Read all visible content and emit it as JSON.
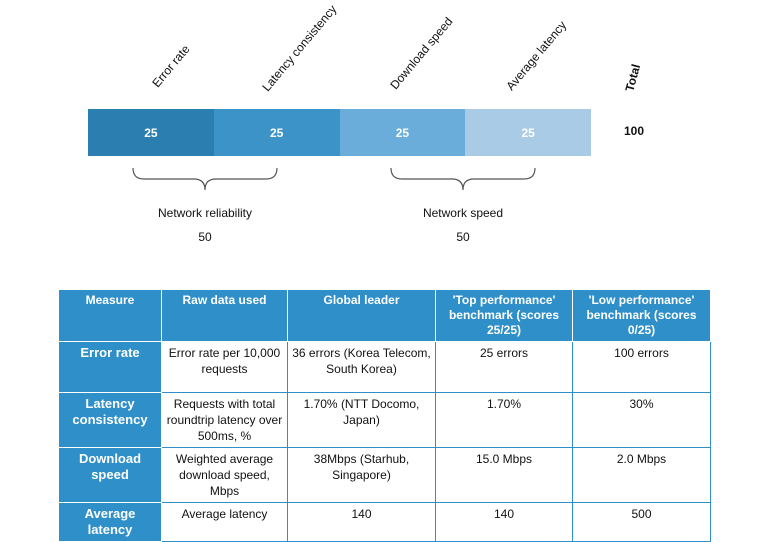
{
  "chart_data": {
    "type": "bar",
    "categories": [
      "Error rate",
      "Latency consistency",
      "Download speed",
      "Average latency"
    ],
    "values": [
      25,
      25,
      25,
      25
    ],
    "colors": [
      "#2a7fb0",
      "#3b93c8",
      "#6aaddb",
      "#a9cbe6"
    ],
    "total_label": "Total",
    "total_value": "100",
    "groups": [
      {
        "name": "Network reliability",
        "value": "50"
      },
      {
        "name": "Network speed",
        "value": "50"
      }
    ]
  },
  "table": {
    "headers": [
      "Measure",
      "Raw data used",
      "Global leader",
      "'Top performance' benchmark (scores 25/25)",
      "'Low performance' benchmark (scores 0/25)"
    ],
    "rows": [
      {
        "measure": "Error rate",
        "raw": "Error rate per 10,000 requests",
        "leader": "36 errors (Korea Telecom, South Korea)",
        "top": "25 errors",
        "low": "100 errors"
      },
      {
        "measure": "Latency consistency",
        "raw": "Requests with total roundtrip latency over 500ms, %",
        "leader": "1.70% (NTT Docomo, Japan)",
        "top": "1.70%",
        "low": "30%"
      },
      {
        "measure": "Download speed",
        "raw": "Weighted average download speed, Mbps",
        "leader": "38Mbps (Starhub, Singapore)",
        "top": "15.0 Mbps",
        "low": "2.0 Mbps"
      },
      {
        "measure": "Average latency",
        "raw": "Average latency",
        "leader": "140",
        "top": "140",
        "low": "500"
      }
    ]
  }
}
